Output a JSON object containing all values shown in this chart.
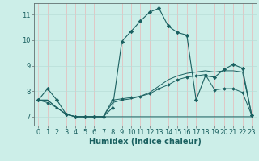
{
  "background_color": "#cceee8",
  "grid_color_h": "#b8ddd8",
  "grid_color_v": "#e8b8b8",
  "line_color": "#1a6060",
  "xlabel": "Humidex (Indice chaleur)",
  "xlabel_fontsize": 7,
  "tick_fontsize": 6,
  "ylabel_ticks": [
    7,
    8,
    9,
    10,
    11
  ],
  "xlim": [
    -0.5,
    23.5
  ],
  "ylim": [
    6.65,
    11.45
  ],
  "series": [
    [
      7.65,
      8.1,
      7.65,
      7.1,
      7.0,
      7.0,
      7.0,
      7.0,
      7.35,
      9.95,
      10.35,
      10.75,
      11.1,
      11.25,
      10.55,
      10.3,
      10.2,
      7.65,
      8.6,
      8.55,
      8.85,
      9.05,
      8.9,
      7.05
    ],
    [
      7.65,
      7.65,
      7.35,
      7.1,
      7.0,
      7.0,
      7.0,
      7.0,
      7.0,
      7.0,
      7.0,
      7.0,
      7.0,
      7.0,
      7.0,
      7.0,
      7.0,
      7.0,
      7.0,
      7.0,
      7.0,
      7.0,
      7.0,
      7.0
    ],
    [
      7.65,
      7.55,
      7.35,
      7.1,
      7.0,
      7.0,
      7.0,
      7.0,
      7.65,
      7.7,
      7.75,
      7.8,
      7.9,
      8.1,
      8.25,
      8.45,
      8.55,
      8.6,
      8.65,
      8.05,
      8.1,
      8.1,
      7.95,
      7.05
    ],
    [
      7.65,
      7.65,
      7.35,
      7.1,
      7.0,
      7.0,
      7.0,
      7.0,
      7.55,
      7.65,
      7.7,
      7.8,
      7.95,
      8.2,
      8.45,
      8.6,
      8.7,
      8.75,
      8.8,
      8.75,
      8.8,
      8.8,
      8.75,
      7.05
    ]
  ]
}
